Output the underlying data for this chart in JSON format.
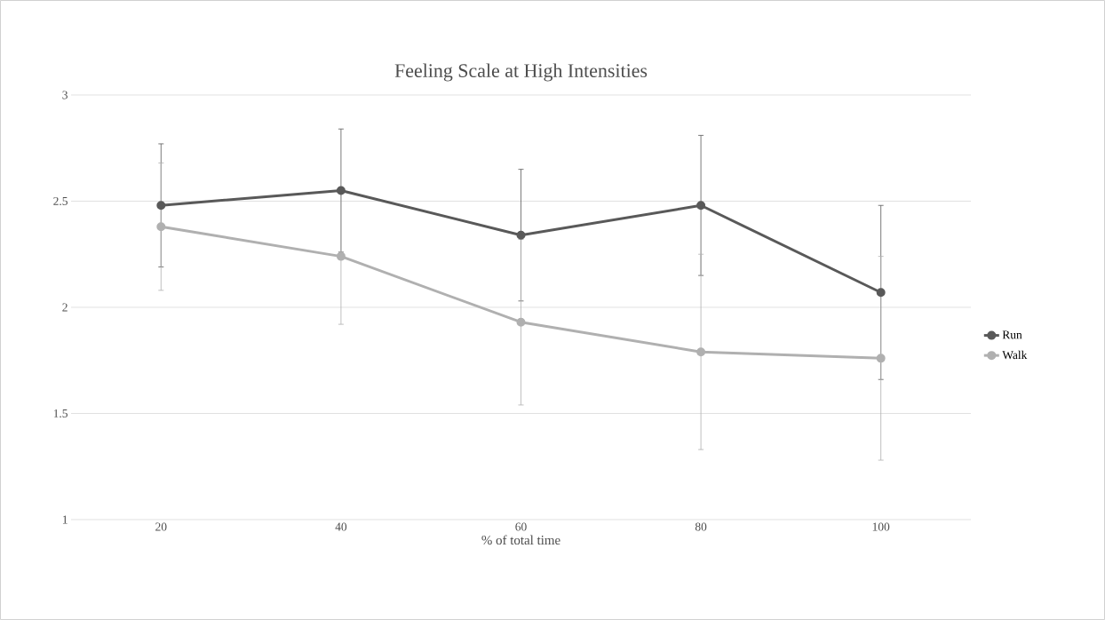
{
  "chart_data": {
    "type": "line",
    "title": "Feeling Scale at High Intensities",
    "xlabel": "% of total time",
    "categories": [
      "20",
      "40",
      "60",
      "80",
      "100"
    ],
    "series": [
      {
        "name": "Run",
        "color": "#595959",
        "values": [
          2.48,
          2.55,
          2.34,
          2.48,
          2.07
        ],
        "errors": [
          0.29,
          0.29,
          0.31,
          0.33,
          0.41
        ]
      },
      {
        "name": "Walk",
        "color": "#b0b0b0",
        "values": [
          2.38,
          2.24,
          1.93,
          1.79,
          1.76
        ],
        "errors": [
          0.3,
          0.32,
          0.39,
          0.46,
          0.48
        ]
      }
    ],
    "ylim": [
      1,
      3
    ],
    "yticks": [
      1,
      1.5,
      2,
      2.5,
      3
    ],
    "grid": "y",
    "legend": "right",
    "marker": "circle",
    "line_style": "solid"
  }
}
